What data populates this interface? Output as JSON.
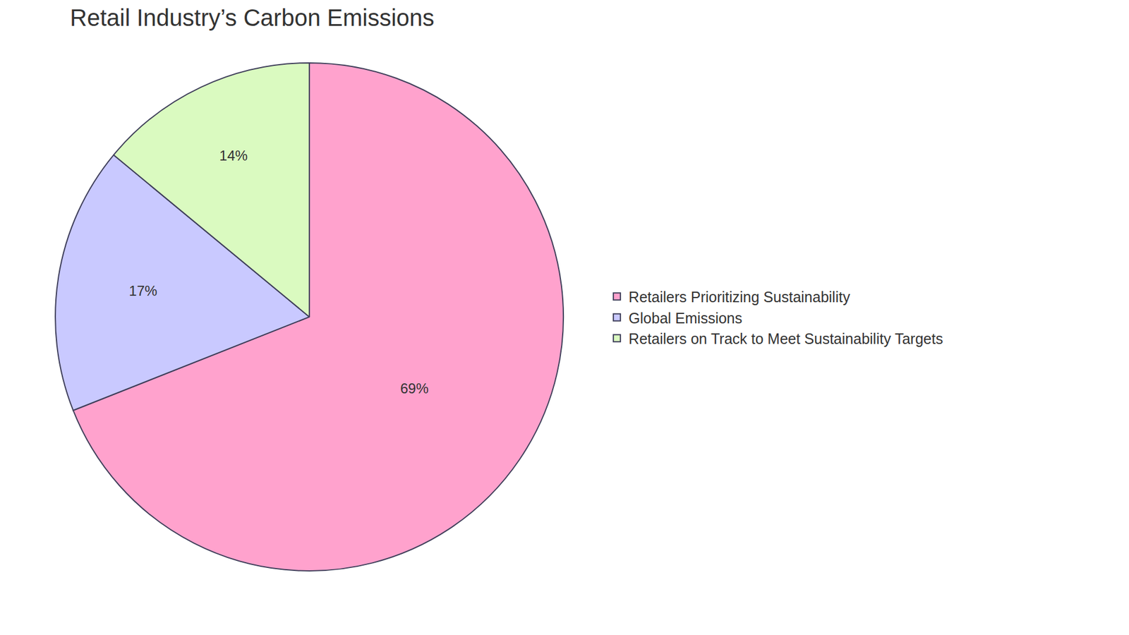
{
  "chart_data": {
    "type": "pie",
    "title": "Retail Industry’s Carbon Emissions",
    "categories": [
      "Retailers Prioritizing Sustainability",
      "Global Emissions",
      "Retailers on Track to Meet Sustainability Targets"
    ],
    "values": [
      69,
      17,
      14
    ],
    "value_labels": [
      "69%",
      "17%",
      "14%"
    ],
    "colors": [
      "#ffa2cd",
      "#c9c9ff",
      "#dafac0"
    ],
    "data_labels": true,
    "legend": "right"
  }
}
